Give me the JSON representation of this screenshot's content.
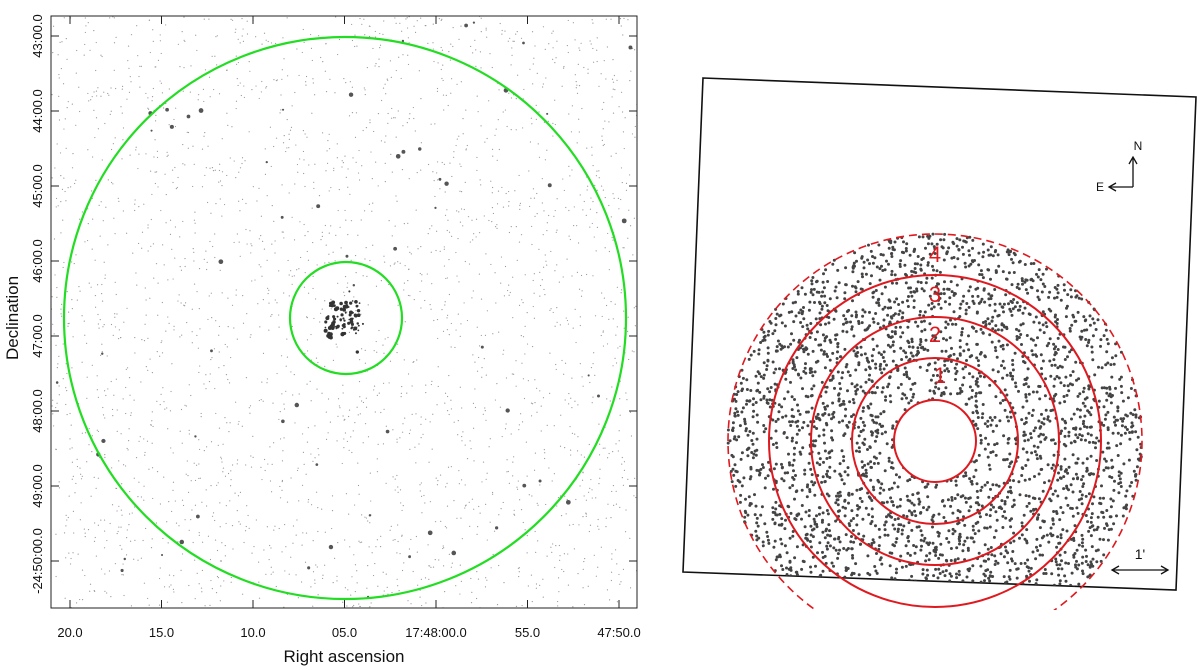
{
  "left_panel": {
    "x_axis_label": "Right ascension",
    "y_axis_label": "Declination",
    "x_tick_labels": [
      "20.0",
      "15.0",
      "10.0",
      "05.0",
      "17:48:00.0",
      "55.0",
      "47:50.0"
    ],
    "y_tick_labels": [
      "43:00.0",
      "44:00.0",
      "45:00.0",
      "46:00.0",
      "47:00.0",
      "48:00.0",
      "49:00.0",
      "-24:50:00.0"
    ]
  },
  "right_panel": {
    "ring_labels": [
      "1",
      "2",
      "3",
      "4"
    ],
    "compass": {
      "north": "N",
      "east": "E"
    },
    "scale_label": "1'"
  }
}
